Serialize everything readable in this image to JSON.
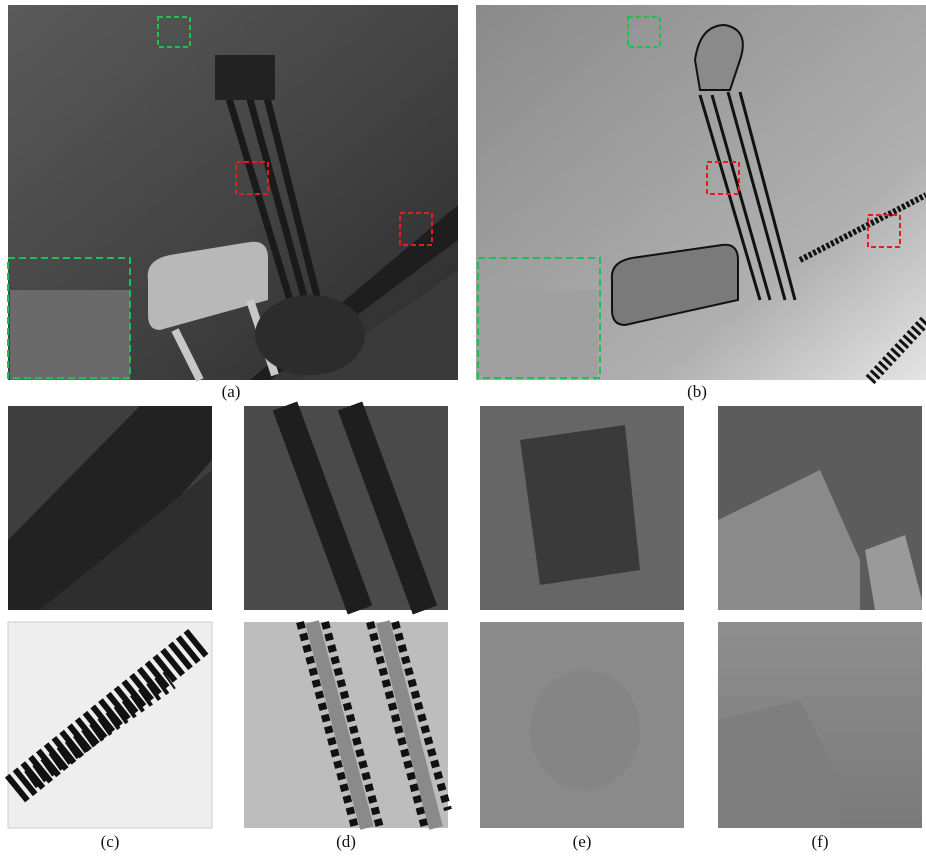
{
  "captions": {
    "a": "(a)",
    "b": "(b)",
    "c": "(c)",
    "d": "(d)",
    "e": "(e)",
    "f": "(f)"
  }
}
